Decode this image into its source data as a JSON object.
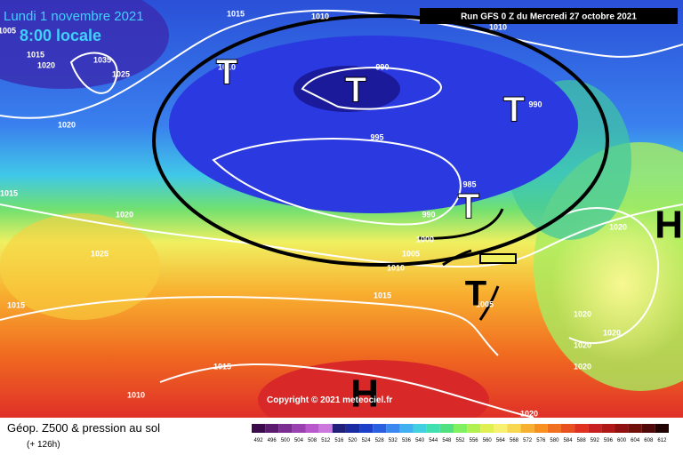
{
  "header": {
    "date": "Lundi 1 novembre 2021",
    "time": "8:00 locale",
    "run": "Run GFS 0 Z du Mercredi 27 octobre 2021"
  },
  "isobar_labels": [
    "1015",
    "1010",
    "1005",
    "1015",
    "1020",
    "1035",
    "1025",
    "1010",
    "990",
    "990",
    "995",
    "1020",
    "1015",
    "1020",
    "985",
    "990",
    "1000",
    "1025",
    "1005",
    "1010",
    "1015",
    "1015",
    "1005",
    "1020",
    "1020",
    "1020",
    "1020",
    "1020",
    "1015",
    "1010",
    "1020",
    "1010"
  ],
  "lows": [
    "T",
    "T",
    "T",
    "T",
    "T"
  ],
  "highs": [
    "H",
    "H"
  ],
  "copyright": "Copyright © 2021 meteociel.fr",
  "footer": {
    "title": "Géop. Z500 & pression au sol",
    "lead": "(+ 126h)"
  },
  "scale": {
    "labels": [
      "492",
      "496",
      "500",
      "504",
      "508",
      "512",
      "516",
      "520",
      "524",
      "528",
      "532",
      "536",
      "540",
      "544",
      "548",
      "552",
      "556",
      "560",
      "564",
      "568",
      "572",
      "576",
      "580",
      "584",
      "588",
      "592",
      "596",
      "600",
      "604",
      "608",
      "612"
    ],
    "colors": [
      "#3a0a4a",
      "#5a1a6e",
      "#7a2c90",
      "#9a40b0",
      "#b858cc",
      "#cc78dd",
      "#20207a",
      "#1a2aa0",
      "#1e40c8",
      "#2a60e0",
      "#3a88f0",
      "#40b0f0",
      "#40d0e0",
      "#40e0b0",
      "#50e080",
      "#80f060",
      "#b0f050",
      "#e0f050",
      "#f8f070",
      "#f8d850",
      "#f8b030",
      "#f89020",
      "#f07020",
      "#e85020",
      "#e03020",
      "#c82020",
      "#b01818",
      "#901010",
      "#701008",
      "#500808",
      "#200404"
    ]
  }
}
